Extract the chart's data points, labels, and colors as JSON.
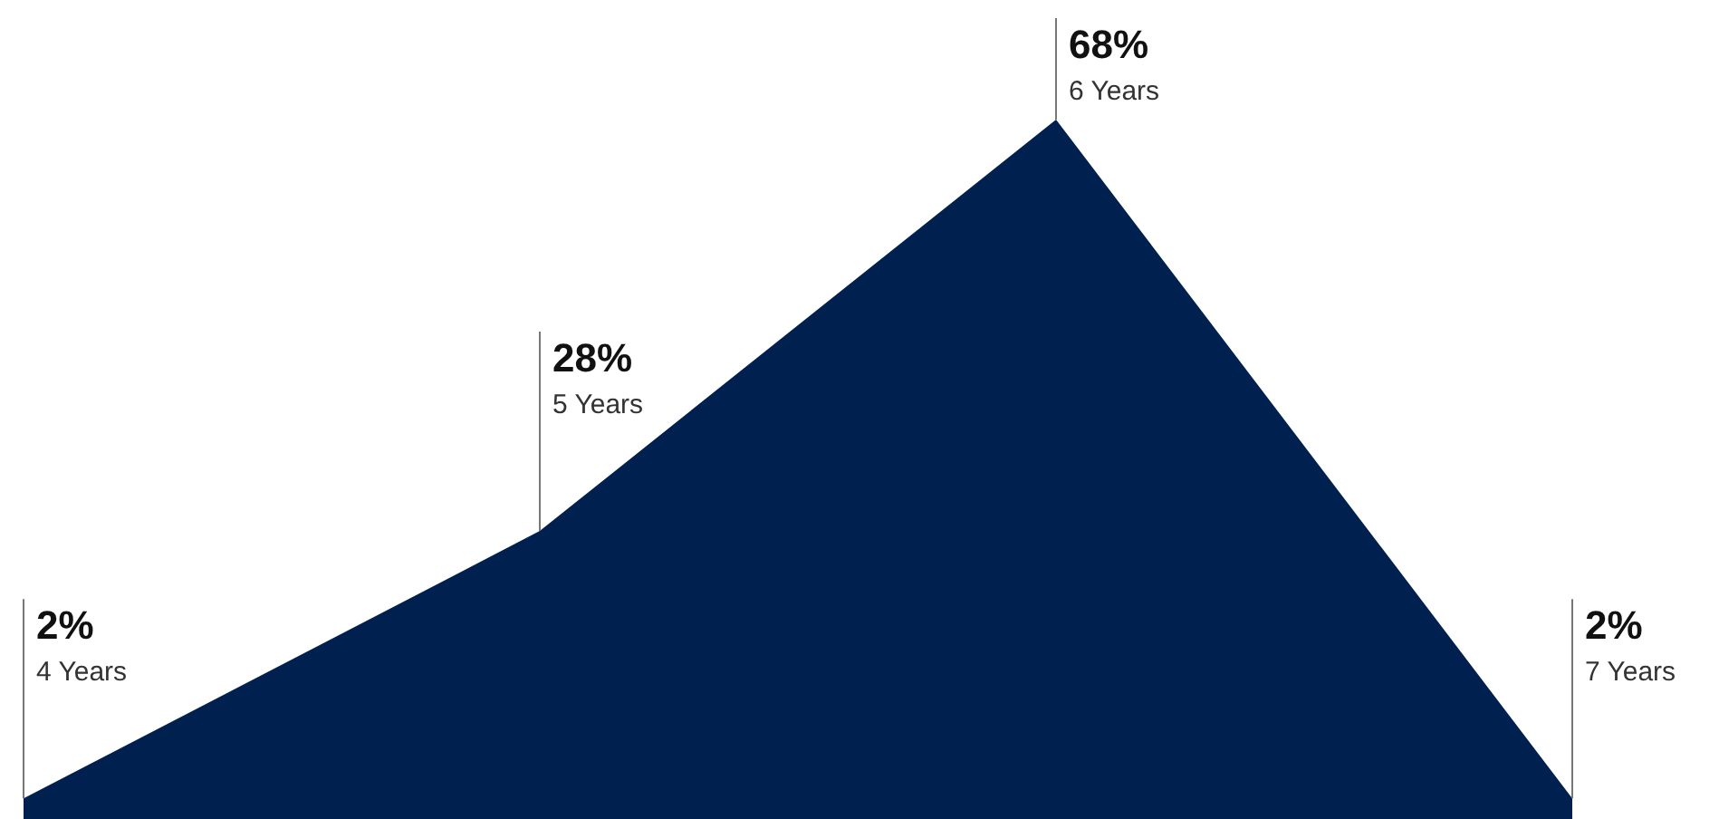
{
  "chart_data": {
    "type": "area",
    "categories": [
      "4 Years",
      "5 Years",
      "6 Years",
      "7 Years"
    ],
    "series": [
      {
        "color": "#00214f",
        "values": [
          2,
          28,
          68,
          2
        ],
        "value_labels": [
          "2%",
          "28%",
          "68%",
          "2%"
        ]
      }
    ]
  }
}
